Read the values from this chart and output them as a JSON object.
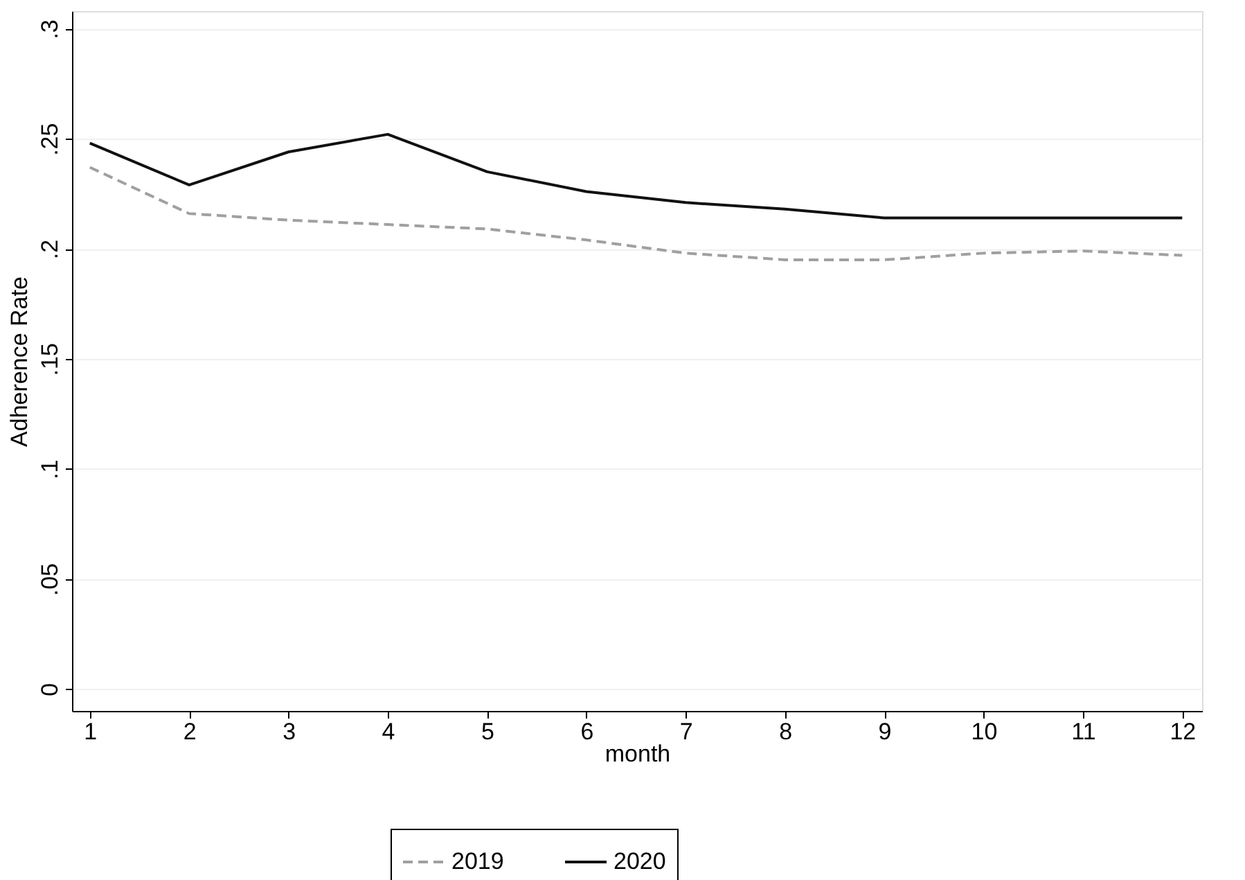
{
  "chart_data": {
    "type": "line",
    "xlabel": "month",
    "ylabel": "Adherence Rate",
    "x": [
      1,
      2,
      3,
      4,
      5,
      6,
      7,
      8,
      9,
      10,
      11,
      12
    ],
    "series": [
      {
        "name": "2019",
        "color": "#a0a0a0",
        "line_style": "dashed",
        "values": [
          0.237,
          0.216,
          0.213,
          0.211,
          0.209,
          0.204,
          0.198,
          0.195,
          0.195,
          0.198,
          0.199,
          0.197
        ]
      },
      {
        "name": "2020",
        "color": "#111111",
        "line_style": "solid",
        "values": [
          0.248,
          0.229,
          0.244,
          0.252,
          0.235,
          0.226,
          0.221,
          0.218,
          0.214,
          0.214,
          0.214,
          0.214
        ]
      }
    ],
    "xlim": [
      0.82,
      12.2
    ],
    "xticks": [
      1,
      2,
      3,
      4,
      5,
      6,
      7,
      8,
      9,
      10,
      11,
      12
    ],
    "ylim": [
      -0.01,
      0.308
    ],
    "yticks": [
      {
        "value": 0,
        "label": "0"
      },
      {
        "value": 0.05,
        "label": ".05"
      },
      {
        "value": 0.1,
        "label": ".1"
      },
      {
        "value": 0.15,
        "label": ".15"
      },
      {
        "value": 0.2,
        "label": ".2"
      },
      {
        "value": 0.25,
        "label": ".25"
      },
      {
        "value": 0.3,
        "label": ".3"
      }
    ],
    "grid": "y",
    "legend": "bottom",
    "marker": "none"
  }
}
